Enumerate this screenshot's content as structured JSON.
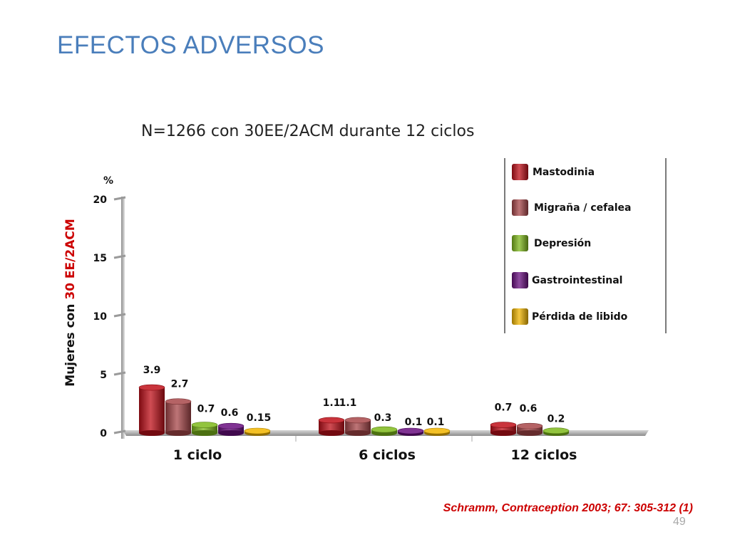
{
  "slide": {
    "title": "EFECTOS ADVERSOS",
    "citation": "Schramm, Contraception 2003; 67: 305-312 (1)",
    "page_number": "49"
  },
  "colors": {
    "title": "#4a7ebb",
    "citation": "#cc0000",
    "Mastodinia": "#c0101a",
    "Migraña / cefalea": "#a8474a",
    "Depresión": "#7fba1c",
    "Gastrointestinal": "#6a0f80",
    "Pérdida de libido": "#f2b600"
  },
  "chart_data": {
    "type": "bar",
    "title": "N=1266 con 30EE/2ACM durante 12 ciclos",
    "ylabel_parts": [
      "Mujeres con ",
      "30 EE/2ACM"
    ],
    "yunit": "%",
    "ylim": [
      0,
      20
    ],
    "yticks": [
      0,
      5,
      10,
      15,
      20
    ],
    "categories": [
      "1 ciclo",
      "6 ciclos",
      "12 ciclos"
    ],
    "legend_position": "top-right",
    "series": [
      {
        "name": "Mastodinia",
        "values": [
          3.9,
          1.1,
          0.7
        ],
        "labels": [
          "3.9",
          "1.1",
          "0.7"
        ]
      },
      {
        "name": "Migraña / cefalea",
        "values": [
          2.7,
          1.1,
          0.6
        ],
        "labels": [
          "2.7",
          "1.1",
          "0.6"
        ]
      },
      {
        "name": "Depresión",
        "values": [
          0.7,
          0.3,
          0.2
        ],
        "labels": [
          "0.7",
          "0.3",
          "0.2"
        ]
      },
      {
        "name": "Gastrointestinal",
        "values": [
          0.6,
          0.1,
          null
        ],
        "labels": [
          "0.6",
          "0.1",
          ""
        ]
      },
      {
        "name": "Pérdida de libido",
        "values": [
          0.15,
          0.1,
          null
        ],
        "labels": [
          "0.15",
          "0.1",
          ""
        ]
      }
    ]
  }
}
